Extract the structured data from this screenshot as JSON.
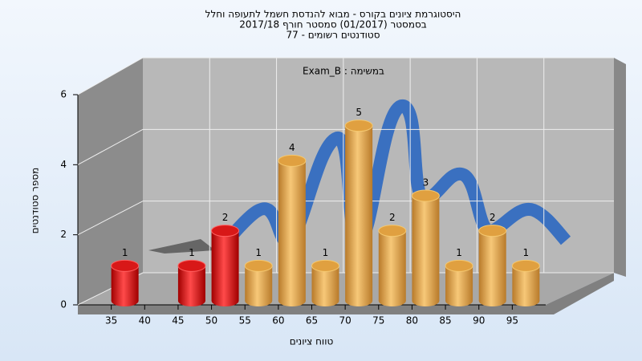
{
  "chart_data": {
    "type": "bar3d",
    "title": "היסטוגרמת ציונים בקורס - מבוא להנדסת חשמל לתעופה וחלל",
    "subtitle": "בסמסטר   (01/2017)  סמסטר חורף 2017/18",
    "subtitle2": "סטודנטים רשומים - 77",
    "annotation": "Exam_B : במשימה",
    "x_label": "טווח ציונים",
    "y_label": "מספר סטודנטים",
    "x": [
      35,
      40,
      45,
      50,
      55,
      60,
      65,
      70,
      75,
      80,
      85,
      90,
      95
    ],
    "values": [
      1,
      0,
      1,
      2,
      1,
      4,
      1,
      5,
      2,
      3,
      1,
      2,
      1
    ],
    "colors": [
      "red",
      "red",
      "red",
      "red",
      "orange",
      "orange",
      "orange",
      "orange",
      "orange",
      "orange",
      "orange",
      "orange",
      "orange"
    ],
    "xlim": [
      30,
      100
    ],
    "xticks": [
      35,
      40,
      45,
      50,
      55,
      60,
      65,
      70,
      75,
      80,
      85,
      90,
      95
    ],
    "ylim": [
      0,
      6
    ],
    "yticks": [
      0,
      2,
      4,
      6
    ],
    "grid": true
  }
}
